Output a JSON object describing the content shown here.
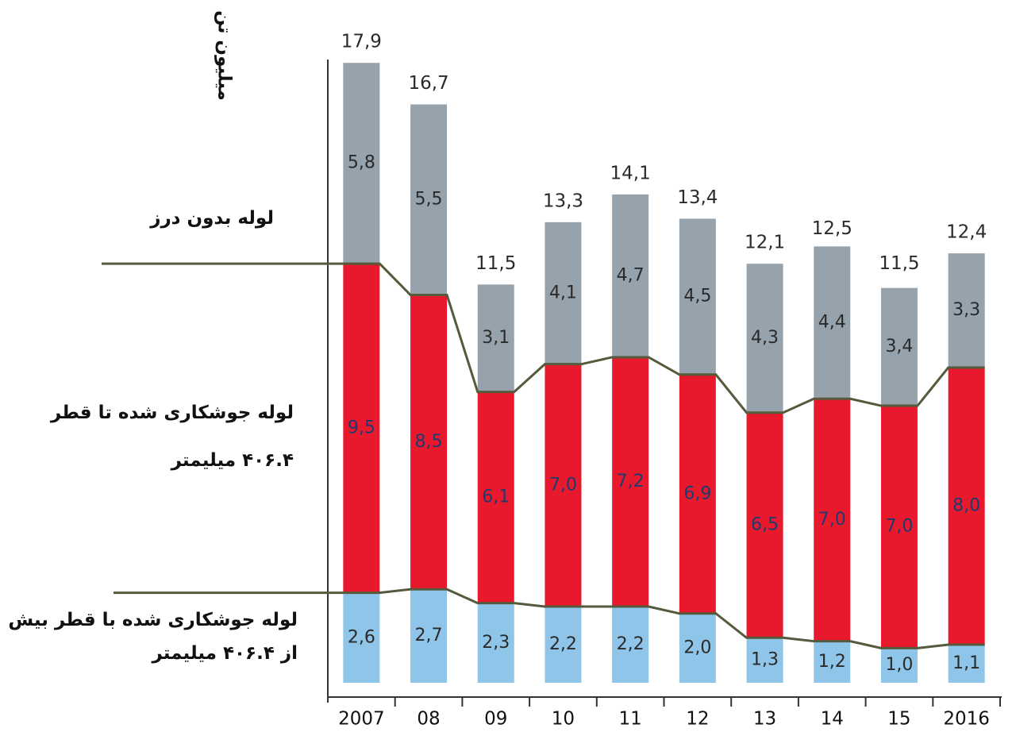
{
  "chart_data": {
    "type": "stacked_bar",
    "y_label": "میلیون تن",
    "categories": [
      "2007",
      "08",
      "09",
      "10",
      "11",
      "12",
      "13",
      "14",
      "15",
      "2016"
    ],
    "series": [
      {
        "name": "لوله جوشکاری شده با قطر بیش از ۴۰۶.۴ میلیمتر",
        "color": "#8ec5e8",
        "label_color": "#2a2a2a",
        "values": [
          2.6,
          2.7,
          2.3,
          2.2,
          2.2,
          2.0,
          1.3,
          1.2,
          1.0,
          1.1
        ],
        "value_labels": [
          "2,6",
          "2,7",
          "2,3",
          "2,2",
          "2,2",
          "2,0",
          "1,3",
          "1,2",
          "1,0",
          "1,1"
        ]
      },
      {
        "name": "لوله جوشکاری شده تا قطر ۴۰۶.۴ میلیمتر",
        "color": "#e8192c",
        "label_color": "#1f3a6e",
        "values": [
          9.5,
          8.5,
          6.1,
          7.0,
          7.2,
          6.9,
          6.5,
          7.0,
          7.0,
          8.0
        ],
        "value_labels": [
          "9,5",
          "8,5",
          "6,1",
          "7,0",
          "7,2",
          "6,9",
          "6,5",
          "7,0",
          "7,0",
          "8,0"
        ]
      },
      {
        "name": "لوله بدون درز",
        "color": "#96a3ad",
        "label_color": "#2a2a2a",
        "values": [
          5.8,
          5.5,
          3.1,
          4.1,
          4.7,
          4.5,
          4.3,
          4.4,
          3.4,
          3.3
        ],
        "value_labels": [
          "5,8",
          "5,5",
          "3,1",
          "4,1",
          "4,7",
          "4,5",
          "4,3",
          "4,4",
          "3,4",
          "3,3"
        ]
      }
    ],
    "totals": {
      "values": [
        17.9,
        16.7,
        11.5,
        13.3,
        14.1,
        13.4,
        12.1,
        12.5,
        11.5,
        12.4
      ],
      "value_labels": [
        "17,9",
        "16,7",
        "11,5",
        "13,3",
        "14,1",
        "13,4",
        "12,1",
        "12,5",
        "11,5",
        "12,4"
      ]
    },
    "ylim": [
      0,
      18.5
    ]
  }
}
